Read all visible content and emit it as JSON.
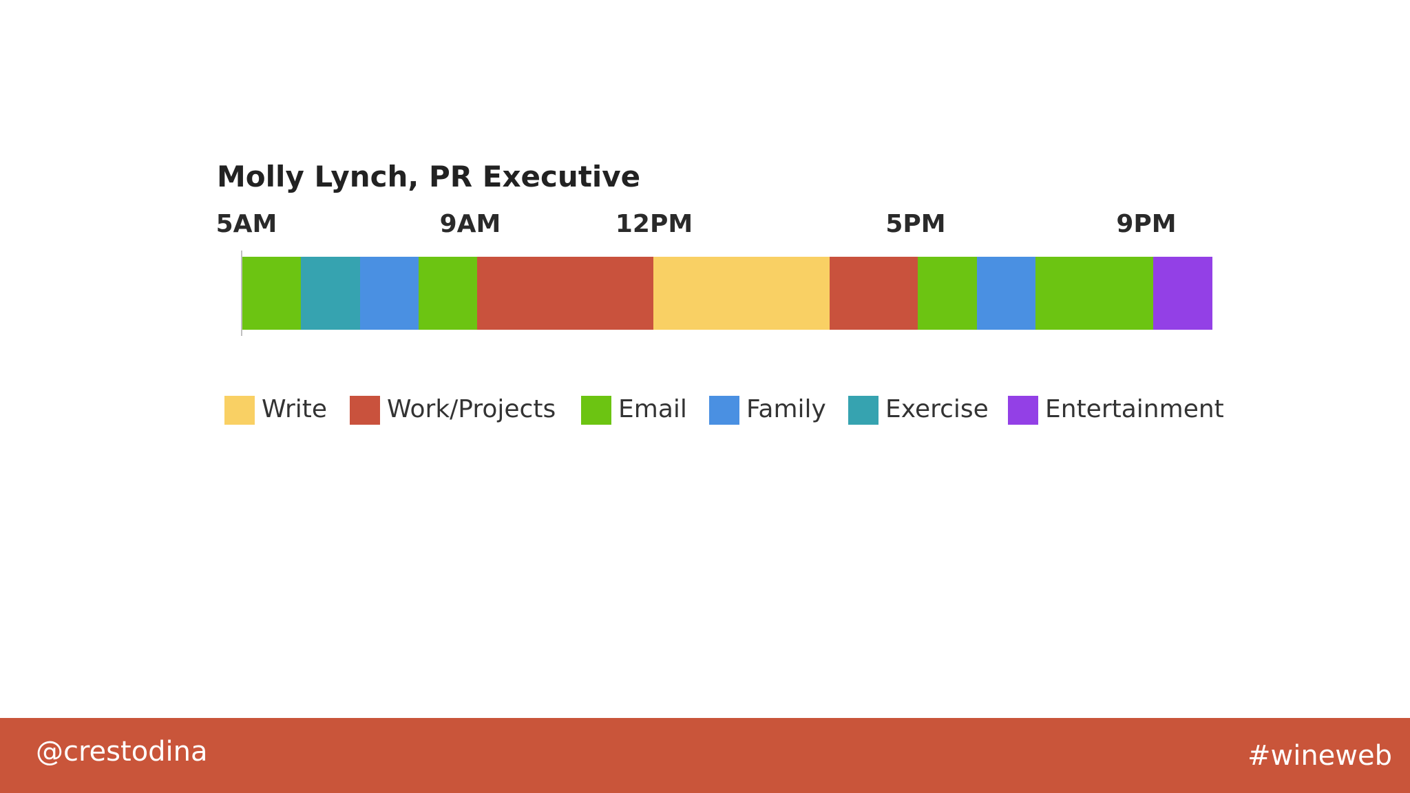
{
  "chart_data": {
    "type": "bar",
    "title": "Molly Lynch, PR Executive",
    "x_ticks": [
      "5AM",
      "9AM",
      "12PM",
      "5PM",
      "9PM"
    ],
    "categories": [
      "Write",
      "Work/Projects",
      "Email",
      "Family",
      "Exercise",
      "Entertainment"
    ],
    "colors": {
      "Write": "#f9d064",
      "Work/Projects": "#c9523d",
      "Email": "#6cc412",
      "Family": "#4a90e2",
      "Exercise": "#36a3b0",
      "Entertainment": "#9340e6"
    },
    "segments": [
      {
        "category": "Email",
        "hours": 1.0
      },
      {
        "category": "Exercise",
        "hours": 1.0
      },
      {
        "category": "Family",
        "hours": 1.0
      },
      {
        "category": "Email",
        "hours": 1.0
      },
      {
        "category": "Work/Projects",
        "hours": 3.0
      },
      {
        "category": "Write",
        "hours": 3.0
      },
      {
        "category": "Work/Projects",
        "hours": 1.5
      },
      {
        "category": "Email",
        "hours": 1.0
      },
      {
        "category": "Family",
        "hours": 1.0
      },
      {
        "category": "Email",
        "hours": 2.0
      },
      {
        "category": "Entertainment",
        "hours": 1.0
      }
    ],
    "legend_position": "bottom"
  },
  "footer": {
    "handle": "@crestodina",
    "hashtag": "#wineweb"
  }
}
